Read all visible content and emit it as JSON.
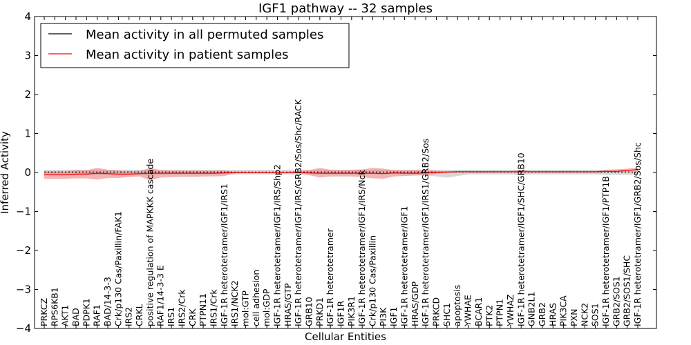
{
  "chart_data": {
    "type": "line",
    "title": "IGF1 pathway -- 32 samples",
    "xlabel": "Cellular Entities",
    "ylabel": "Inferred Activity",
    "ylim": [
      -4,
      4
    ],
    "yticks": [
      "−4",
      "−3",
      "−2",
      "−1",
      "0",
      "1",
      "2",
      "3",
      "4"
    ],
    "legend_position": "top-left",
    "categories": [
      "PRKCZ",
      "RPS6KB1",
      "AKT1",
      "BAD",
      "PDPK1",
      "RAF1",
      "BAD/14-3-3",
      "Crk/p130 Cas/Paxillin/FAK1",
      "IRS2",
      "CRKL",
      "positive regulation of MAPKKK cascade",
      "RAF1/14-3-3 E",
      "IRS1",
      "IRS2/Crk",
      "CRK",
      "PTPN11",
      "IRS1/Crk",
      "IGF-1R heterotetramer/IGF1/IRS1",
      "IRS1/NCK2",
      "mol:GTP",
      "cell adhesion",
      "mol:GDP",
      "IGF-1R heterotetramer/IGF1/IRS/Shp2",
      "HRAS/GTP",
      "IGF-1R heterotetramer/IGF1/IRS/GRB2/Sos/Shc/RACK",
      "GRB10",
      "PRKD1",
      "IGF-1R heterotetramer",
      "IGF1R",
      "PIK3R1",
      "IGF-1R heterotetramer/IGF1/IRS/Nck",
      "Crk/p130 Cas/Paxillin",
      "PI3K",
      "IGF1",
      "IGF-1R heterotetramer/IGF1",
      "HRAS/GDP",
      "IGF-1R heterotetramer/IGF1/IRS1/GRB2/Sos",
      "PRKCD",
      "SHC1",
      "apoptosis",
      "YWHAE",
      "BCAR1",
      "PTK2",
      "PTPN1",
      "YWHAZ",
      "IGF-1R heterotetramer/IGF1/SHC/GRB10",
      "GNB2L1",
      "GRB2",
      "HRAS",
      "PIK3CA",
      "PXN",
      "NCK2",
      "SOS1",
      "IGF-1R heterotetramer/IGF1/PTP1B",
      "GRB2/SOS1",
      "GRB2/SOS1/SHC",
      "IGF-1R heterotetramer/IGF1/GRB2/Sos/Shc"
    ],
    "series": [
      {
        "name": "Mean activity in all permuted samples",
        "color": "#000000",
        "band_color": "#c8c8c8",
        "values": [
          0.01,
          0.01,
          0.01,
          0.01,
          0.01,
          0.01,
          0.01,
          0.01,
          0.01,
          0.01,
          0.01,
          0.01,
          0.01,
          0.01,
          0.01,
          0.01,
          0.01,
          0.01,
          0.01,
          0.01,
          0.01,
          0.01,
          0.01,
          0.01,
          0.01,
          0.01,
          0.01,
          0.01,
          0.01,
          0.01,
          0.01,
          0.01,
          0.01,
          0.01,
          0.01,
          0.01,
          0.01,
          0.01,
          0.01,
          0.01,
          0.01,
          0.01,
          0.01,
          0.01,
          0.01,
          0.01,
          0.01,
          0.01,
          0.01,
          0.01,
          0.01,
          0.01,
          0.01,
          0.01,
          0.01,
          0.01,
          0.01
        ],
        "band_lower": [
          -0.07,
          -0.07,
          -0.07,
          -0.07,
          -0.07,
          -0.07,
          -0.07,
          -0.07,
          -0.07,
          -0.07,
          -0.07,
          -0.06,
          -0.05,
          -0.05,
          -0.05,
          -0.05,
          -0.05,
          -0.05,
          -0.05,
          -0.05,
          -0.05,
          -0.05,
          -0.05,
          -0.05,
          -0.05,
          -0.05,
          -0.05,
          -0.05,
          -0.05,
          -0.05,
          -0.05,
          -0.05,
          -0.05,
          -0.05,
          -0.05,
          -0.05,
          -0.07,
          -0.1,
          -0.13,
          -0.09,
          -0.05,
          -0.05,
          -0.05,
          -0.05,
          -0.05,
          -0.06,
          -0.05,
          -0.05,
          -0.05,
          -0.05,
          -0.05,
          -0.05,
          -0.05,
          -0.06,
          -0.06,
          -0.06,
          -0.06
        ],
        "band_upper": [
          0.07,
          0.07,
          0.07,
          0.07,
          0.07,
          0.07,
          0.07,
          0.07,
          0.07,
          0.07,
          0.07,
          0.07,
          0.07,
          0.07,
          0.07,
          0.07,
          0.07,
          0.07,
          0.07,
          0.07,
          0.07,
          0.07,
          0.07,
          0.07,
          0.07,
          0.07,
          0.07,
          0.07,
          0.07,
          0.07,
          0.07,
          0.07,
          0.07,
          0.07,
          0.07,
          0.07,
          0.07,
          0.07,
          0.07,
          0.07,
          0.07,
          0.07,
          0.07,
          0.07,
          0.07,
          0.07,
          0.07,
          0.07,
          0.07,
          0.07,
          0.07,
          0.07,
          0.07,
          0.07,
          0.07,
          0.07,
          0.07
        ]
      },
      {
        "name": "Mean activity in patient samples",
        "color": "#ff0000",
        "band_color": "#f08080",
        "values": [
          -0.06,
          -0.06,
          -0.06,
          -0.04,
          -0.04,
          -0.02,
          -0.03,
          -0.04,
          -0.04,
          -0.03,
          -0.02,
          -0.02,
          -0.02,
          -0.02,
          -0.02,
          -0.02,
          -0.02,
          -0.01,
          0.0,
          0.0,
          0.0,
          0.0,
          0.0,
          0.0,
          0.0,
          -0.01,
          -0.02,
          -0.02,
          -0.02,
          -0.02,
          -0.02,
          -0.02,
          -0.03,
          -0.01,
          -0.02,
          -0.02,
          -0.01,
          0.0,
          0.01,
          0.02,
          0.02,
          0.02,
          0.02,
          0.02,
          0.02,
          0.02,
          0.02,
          0.02,
          0.02,
          0.02,
          0.02,
          0.02,
          0.02,
          0.03,
          0.03,
          0.05,
          0.08
        ],
        "band_lower": [
          -0.16,
          -0.16,
          -0.16,
          -0.15,
          -0.15,
          -0.18,
          -0.14,
          -0.14,
          -0.12,
          -0.1,
          -0.2,
          -0.13,
          -0.12,
          -0.11,
          -0.11,
          -0.1,
          -0.1,
          -0.09,
          -0.02,
          -0.01,
          -0.01,
          -0.01,
          -0.01,
          -0.01,
          -0.02,
          -0.07,
          -0.13,
          -0.1,
          -0.1,
          -0.1,
          -0.12,
          -0.15,
          -0.16,
          -0.1,
          -0.09,
          -0.08,
          -0.07,
          -0.03,
          -0.01,
          0.0,
          0.0,
          0.0,
          0.0,
          0.0,
          0.0,
          0.0,
          0.0,
          0.0,
          0.0,
          0.0,
          0.0,
          0.0,
          0.0,
          0.0,
          0.0,
          0.02,
          0.05
        ],
        "band_upper": [
          0.03,
          0.03,
          0.03,
          0.06,
          0.06,
          0.12,
          0.07,
          0.05,
          0.04,
          0.04,
          0.12,
          0.06,
          0.05,
          0.05,
          0.05,
          0.05,
          0.05,
          0.05,
          0.01,
          0.01,
          0.01,
          0.01,
          0.01,
          0.01,
          0.04,
          0.06,
          0.12,
          0.07,
          0.06,
          0.07,
          0.08,
          0.12,
          0.1,
          0.06,
          0.06,
          0.06,
          0.07,
          0.04,
          0.03,
          0.04,
          0.04,
          0.04,
          0.04,
          0.04,
          0.04,
          0.07,
          0.04,
          0.04,
          0.04,
          0.04,
          0.04,
          0.04,
          0.04,
          0.07,
          0.08,
          0.1,
          0.12
        ]
      }
    ]
  }
}
